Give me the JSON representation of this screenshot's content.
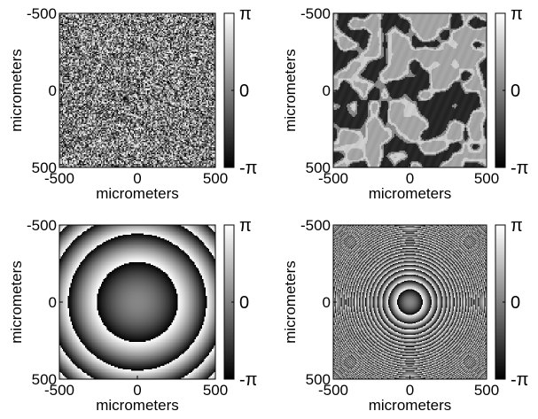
{
  "chart_data": [
    {
      "type": "heatmap",
      "pattern": "uniform-random-phase",
      "xlabel": "micrometers",
      "ylabel": "micrometers",
      "x_ticks": [
        "-500",
        "0",
        "500"
      ],
      "y_ticks": [
        "-500",
        "0",
        "500"
      ],
      "xlim": [
        -500,
        500
      ],
      "ylim": [
        -500,
        500
      ],
      "colorbar": {
        "ticks": [
          "π",
          "0",
          "-π"
        ],
        "range": [
          -3.14159,
          3.14159
        ],
        "colormap": "grayscale"
      }
    },
    {
      "type": "heatmap",
      "pattern": "smoothed-random-phase",
      "xlabel": "micrometers",
      "ylabel": "micrometers",
      "x_ticks": [
        "-500",
        "0",
        "500"
      ],
      "y_ticks": [
        "-500",
        "0",
        "500"
      ],
      "xlim": [
        -500,
        500
      ],
      "ylim": [
        -500,
        500
      ],
      "colorbar": {
        "ticks": [
          "π",
          "0",
          "-π"
        ],
        "range": [
          -3.14159,
          3.14159
        ],
        "colormap": "grayscale"
      }
    },
    {
      "type": "heatmap",
      "pattern": "quadratic-lens-phase-wrapped",
      "xlabel": "micrometers",
      "ylabel": "micrometers",
      "x_ticks": [
        "-500",
        "0",
        "500"
      ],
      "y_ticks": [
        "-500",
        "0",
        "500"
      ],
      "xlim": [
        -500,
        500
      ],
      "ylim": [
        -500,
        500
      ],
      "colorbar": {
        "ticks": [
          "π",
          "0",
          "-π"
        ],
        "range": [
          -3.14159,
          3.14159
        ],
        "colormap": "grayscale"
      }
    },
    {
      "type": "heatmap",
      "pattern": "quadratic-lens-phase-wrapped-strong",
      "xlabel": "micrometers",
      "ylabel": "micrometers",
      "x_ticks": [
        "-500",
        "0",
        "500"
      ],
      "y_ticks": [
        "-500",
        "0",
        "500"
      ],
      "xlim": [
        -500,
        500
      ],
      "ylim": [
        -500,
        500
      ],
      "colorbar": {
        "ticks": [
          "π",
          "0",
          "-π"
        ],
        "range": [
          -3.14159,
          3.14159
        ],
        "colormap": "grayscale"
      }
    }
  ]
}
